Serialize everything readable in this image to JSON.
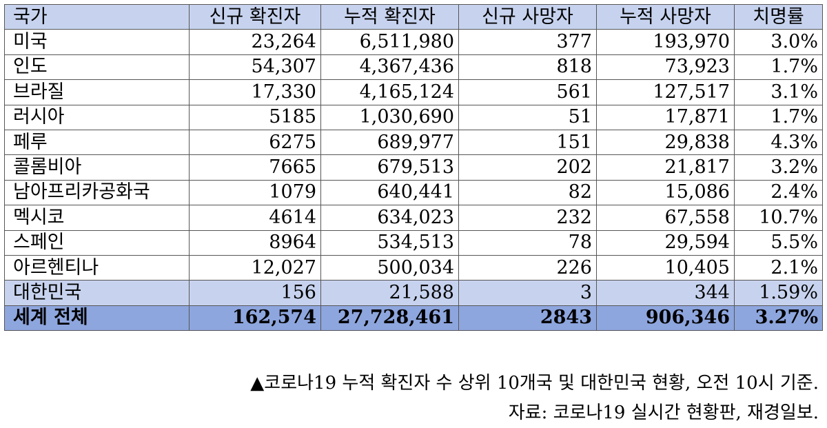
{
  "table": {
    "headers": [
      "국가",
      "신규 확진자",
      "누적 확진자",
      "신규 사망자",
      "누적 사망자",
      "치명률"
    ],
    "rows": [
      [
        "미국",
        "23,264",
        "6,511,980",
        "377",
        "193,970",
        "3.0%"
      ],
      [
        "인도",
        "54,307",
        "4,367,436",
        "818",
        "73,923",
        "1.7%"
      ],
      [
        "브라질",
        "17,330",
        "4,165,124",
        "561",
        "127,517",
        "3.1%"
      ],
      [
        "러시아",
        "5185",
        "1,030,690",
        "51",
        "17,871",
        "1.7%"
      ],
      [
        "페루",
        "6275",
        "689,977",
        "151",
        "29,838",
        "4.3%"
      ],
      [
        "콜롬비아",
        "7665",
        "679,513",
        "202",
        "21,817",
        "3.2%"
      ],
      [
        "남아프리카공화국",
        "1079",
        "640,441",
        "82",
        "15,086",
        "2.4%"
      ],
      [
        "멕시코",
        "4614",
        "634,023",
        "232",
        "67,558",
        "10.7%"
      ],
      [
        "스페인",
        "8964",
        "534,513",
        "78",
        "29,594",
        "5.5%"
      ],
      [
        "아르헨티나",
        "12,027",
        "500,034",
        "226",
        "10,405",
        "2.1%"
      ],
      [
        "대한민국",
        "156",
        "21,588",
        "3",
        "344",
        "1.59%"
      ],
      [
        "세계 전체",
        "162,574",
        "27,728,461",
        "2843",
        "906,346",
        "3.27%"
      ]
    ],
    "colors": {
      "header_bg": "#c7d3ee",
      "korea_row_bg": "#c7d3ee",
      "total_row_bg": "#8ea6de",
      "border": "#555555"
    }
  },
  "caption": {
    "line1": "▲코로나19 누적 확진자 수 상위 10개국 및 대한민국 현황, 오전 10시 기준.",
    "line2": "자료: 코로나19 실시간 현황판, 재경일보."
  }
}
